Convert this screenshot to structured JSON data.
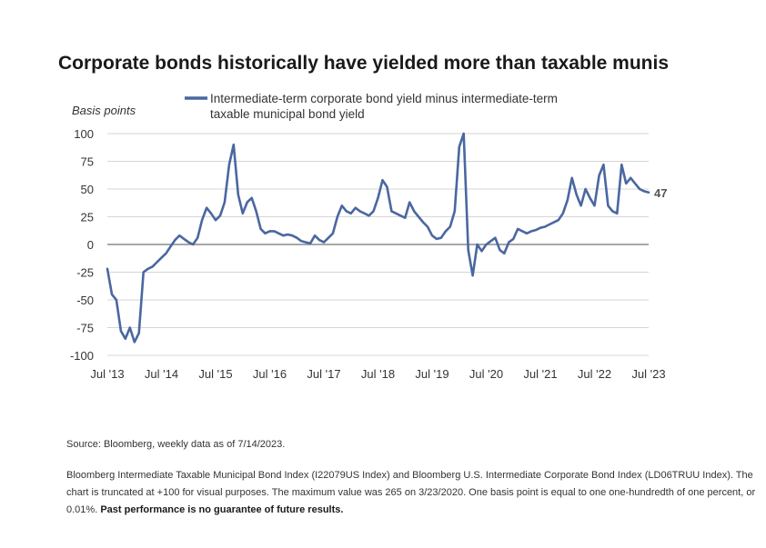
{
  "chart_data": {
    "type": "line",
    "title": "Corporate bonds historically have yielded more than taxable munis",
    "ylabel": "Basis points",
    "xlabel": "",
    "ylim": [
      -100,
      100
    ],
    "y_ticks": [
      100,
      75,
      50,
      25,
      0,
      -25,
      -50,
      -75,
      -100
    ],
    "y_tick_labels": [
      "100",
      "75",
      "50",
      "25",
      "0",
      "-25",
      "-50",
      "-75",
      "-100"
    ],
    "x_ticks": [
      "2013-07",
      "2014-07",
      "2015-07",
      "2016-07",
      "2017-07",
      "2018-07",
      "2019-07",
      "2020-07",
      "2021-07",
      "2022-07",
      "2023-07"
    ],
    "x_tick_labels": [
      "Jul '13",
      "Jul '14",
      "Jul '15",
      "Jul '16",
      "Jul '17",
      "Jul '18",
      "Jul '19",
      "Jul '20",
      "Jul '21",
      "Jul '22",
      "Jul '23"
    ],
    "grid": "horizontal",
    "legend_position": "top",
    "last_value_label": "47",
    "color": "#4a67a0",
    "series": [
      {
        "name": "Intermediate-term corporate bond yield minus intermediate-term taxable municipal bond yield",
        "x": [
          "2013-07",
          "2013-08",
          "2013-09",
          "2013-10",
          "2013-11",
          "2013-12",
          "2014-01",
          "2014-02",
          "2014-03",
          "2014-04",
          "2014-05",
          "2014-06",
          "2014-07",
          "2014-08",
          "2014-09",
          "2014-10",
          "2014-11",
          "2014-12",
          "2015-01",
          "2015-02",
          "2015-03",
          "2015-04",
          "2015-05",
          "2015-06",
          "2015-07",
          "2015-08",
          "2015-09",
          "2015-10",
          "2015-11",
          "2015-12",
          "2016-01",
          "2016-02",
          "2016-03",
          "2016-04",
          "2016-05",
          "2016-06",
          "2016-07",
          "2016-08",
          "2016-09",
          "2016-10",
          "2016-11",
          "2016-12",
          "2017-01",
          "2017-02",
          "2017-03",
          "2017-04",
          "2017-05",
          "2017-06",
          "2017-07",
          "2017-08",
          "2017-09",
          "2017-10",
          "2017-11",
          "2017-12",
          "2018-01",
          "2018-02",
          "2018-03",
          "2018-04",
          "2018-05",
          "2018-06",
          "2018-07",
          "2018-08",
          "2018-09",
          "2018-10",
          "2018-11",
          "2018-12",
          "2019-01",
          "2019-02",
          "2019-03",
          "2019-04",
          "2019-05",
          "2019-06",
          "2019-07",
          "2019-08",
          "2019-09",
          "2019-10",
          "2019-11",
          "2019-12",
          "2020-01",
          "2020-02",
          "2020-03",
          "2020-04",
          "2020-05",
          "2020-06",
          "2020-07",
          "2020-08",
          "2020-09",
          "2020-10",
          "2020-11",
          "2020-12",
          "2021-01",
          "2021-02",
          "2021-03",
          "2021-04",
          "2021-05",
          "2021-06",
          "2021-07",
          "2021-08",
          "2021-09",
          "2021-10",
          "2021-11",
          "2021-12",
          "2022-01",
          "2022-02",
          "2022-03",
          "2022-04",
          "2022-05",
          "2022-06",
          "2022-07",
          "2022-08",
          "2022-09",
          "2022-10",
          "2022-11",
          "2022-12",
          "2023-01",
          "2023-02",
          "2023-03",
          "2023-04",
          "2023-05",
          "2023-06",
          "2023-07"
        ],
        "values": [
          -22,
          -45,
          -50,
          -78,
          -85,
          -75,
          -88,
          -80,
          -25,
          -22,
          -20,
          -16,
          -12,
          -8,
          -2,
          4,
          8,
          5,
          2,
          0,
          6,
          22,
          33,
          28,
          22,
          26,
          38,
          72,
          90,
          45,
          28,
          38,
          42,
          30,
          14,
          10,
          12,
          12,
          10,
          8,
          9,
          8,
          6,
          3,
          2,
          1,
          8,
          4,
          2,
          6,
          10,
          25,
          35,
          30,
          28,
          33,
          30,
          28,
          26,
          30,
          42,
          58,
          52,
          30,
          28,
          26,
          24,
          38,
          30,
          25,
          20,
          16,
          8,
          5,
          6,
          12,
          16,
          30,
          88,
          100,
          -5,
          -28,
          0,
          -6,
          0,
          3,
          6,
          -5,
          -8,
          2,
          5,
          14,
          12,
          10,
          12,
          13,
          15,
          16,
          18,
          20,
          22,
          28,
          40,
          60,
          45,
          35,
          50,
          42,
          35,
          62,
          72,
          35,
          30,
          28,
          72,
          55,
          60,
          55,
          50,
          48,
          47
        ]
      }
    ]
  },
  "notes": {
    "source": "Source: Bloomberg, weekly data as of 7/14/2023.",
    "description": "Bloomberg Intermediate Taxable Municipal Bond Index (I22079US Index) and Bloomberg U.S. Intermediate Corporate Bond Index (LD06TRUU Index). The chart is truncated at +100 for visual purposes. The maximum value was 265 on 3/23/2020. One basis point is equal to one one-hundredth of one percent, or 0.01%.",
    "disclaimer": "Past performance is no guarantee of future results."
  }
}
